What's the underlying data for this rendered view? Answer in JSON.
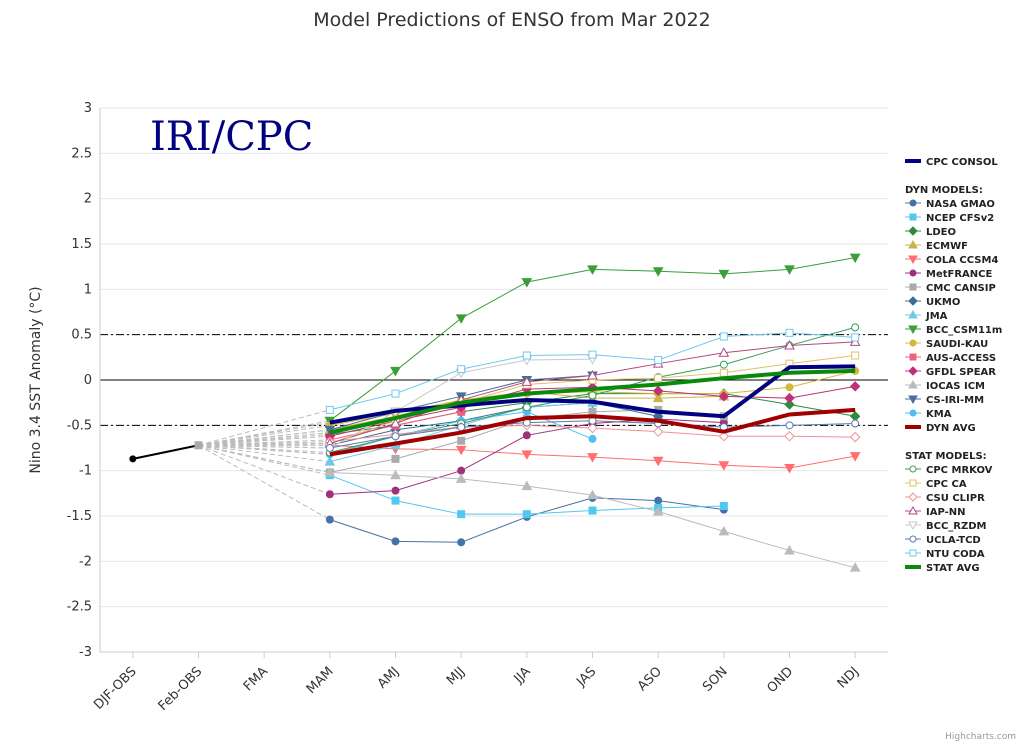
{
  "chart_data": {
    "type": "line",
    "title": "Model Predictions of ENSO from Mar 2022",
    "watermark": "IRI/CPC",
    "ylabel": "Nino 3.4 SST Anomaly (°C)",
    "ylim": [
      -3,
      3
    ],
    "yticks": [
      "3",
      "2.5",
      "2",
      "1.5",
      "1",
      "0.5",
      "0",
      "-0.5",
      "-1",
      "-1.5",
      "-2",
      "-2.5",
      "-3"
    ],
    "ytick_values": [
      3,
      2.5,
      2,
      1.5,
      1,
      0.5,
      0,
      -0.5,
      -1,
      -1.5,
      -2,
      -2.5,
      -3
    ],
    "categories": [
      "DJF-OBS",
      "Feb-OBS",
      "FMA",
      "MAM",
      "AMJ",
      "MJJ",
      "JJA",
      "JAS",
      "ASO",
      "SON",
      "OND",
      "NDJ"
    ],
    "reference_lines": [
      0.5,
      0,
      -0.5
    ],
    "grid": true,
    "legend_position": "right",
    "observed": {
      "x": [
        "DJF-OBS",
        "Feb-OBS"
      ],
      "values": [
        -0.87,
        -0.72
      ],
      "color": "#000000"
    },
    "dyn_header": "DYN MODELS:",
    "stat_header": "STAT MODELS:",
    "series": [
      {
        "name": "CPC CONSOL",
        "group": "consol",
        "color": "#000080",
        "marker": "none",
        "width": 4,
        "values": [
          null,
          null,
          null,
          -0.47,
          -0.34,
          -0.28,
          -0.22,
          -0.24,
          -0.35,
          -0.4,
          0.14,
          0.15
        ]
      },
      {
        "name": "NASA GMAO",
        "group": "dyn",
        "color": "#4572a7",
        "marker": "circle",
        "width": 1,
        "values": [
          null,
          null,
          null,
          -1.54,
          -1.78,
          -1.79,
          -1.51,
          -1.3,
          -1.33,
          -1.43,
          null,
          null
        ]
      },
      {
        "name": "NCEP CFSv2",
        "group": "dyn",
        "color": "#50c8f0",
        "marker": "square",
        "width": 1,
        "values": [
          null,
          null,
          null,
          -1.05,
          -1.33,
          -1.48,
          -1.48,
          -1.44,
          -1.41,
          -1.39,
          null,
          null
        ]
      },
      {
        "name": "LDEO",
        "group": "dyn",
        "color": "#2e8b3e",
        "marker": "diamond",
        "width": 1,
        "values": [
          null,
          null,
          null,
          -0.6,
          -0.5,
          -0.35,
          -0.25,
          -0.15,
          -0.15,
          -0.15,
          -0.27,
          -0.4
        ]
      },
      {
        "name": "ECMWF",
        "group": "dyn",
        "color": "#c9b44a",
        "marker": "triangle",
        "width": 1,
        "values": [
          null,
          null,
          null,
          -0.55,
          -0.4,
          -0.22,
          -0.13,
          -0.2,
          -0.2,
          -0.18,
          null,
          null
        ]
      },
      {
        "name": "COLA CCSM4",
        "group": "dyn",
        "color": "#ff6f6f",
        "marker": "triangle-down",
        "width": 1,
        "values": [
          null,
          null,
          null,
          -0.72,
          -0.76,
          -0.77,
          -0.82,
          -0.85,
          -0.89,
          -0.94,
          -0.97,
          -0.84
        ]
      },
      {
        "name": "MetFRANCE",
        "group": "dyn",
        "color": "#a0307a",
        "marker": "circle",
        "width": 1,
        "values": [
          null,
          null,
          null,
          -1.26,
          -1.22,
          -1.0,
          -0.61,
          -0.48,
          -0.43,
          -0.47,
          null,
          null
        ]
      },
      {
        "name": "CMC CANSIP",
        "group": "dyn",
        "color": "#aaaaaa",
        "marker": "square",
        "width": 1,
        "values": [
          null,
          null,
          null,
          -1.02,
          -0.87,
          -0.67,
          -0.43,
          -0.35,
          -0.33,
          -0.4,
          null,
          null
        ]
      },
      {
        "name": "UKMO",
        "group": "dyn",
        "color": "#3a6e96",
        "marker": "diamond",
        "width": 1,
        "values": [
          null,
          null,
          null,
          -0.72,
          -0.55,
          -0.45,
          -0.3,
          -0.25,
          -0.4,
          null,
          null,
          null
        ]
      },
      {
        "name": "JMA",
        "group": "dyn",
        "color": "#70c8e8",
        "marker": "triangle",
        "width": 1,
        "values": [
          null,
          null,
          null,
          -0.9,
          -0.72,
          -0.5,
          -0.3,
          -0.25,
          null,
          null,
          null,
          null
        ]
      },
      {
        "name": "BCC_CSM11m",
        "group": "dyn",
        "color": "#3a9e3a",
        "marker": "triangle-down",
        "width": 1,
        "values": [
          null,
          null,
          null,
          -0.45,
          0.1,
          0.68,
          1.08,
          1.22,
          1.2,
          1.17,
          1.22,
          1.35
        ]
      },
      {
        "name": "SAUDI-KAU",
        "group": "dyn",
        "color": "#d4b83c",
        "marker": "circle",
        "width": 1,
        "values": [
          null,
          null,
          null,
          -0.5,
          -0.37,
          -0.22,
          -0.15,
          -0.13,
          -0.15,
          -0.15,
          -0.08,
          0.1
        ]
      },
      {
        "name": "AUS-ACCESS",
        "group": "dyn",
        "color": "#f06080",
        "marker": "square",
        "width": 1,
        "values": [
          null,
          null,
          null,
          -0.66,
          -0.5,
          -0.35,
          null,
          null,
          null,
          null,
          null,
          null
        ]
      },
      {
        "name": "GFDL SPEAR",
        "group": "dyn",
        "color": "#c0307a",
        "marker": "diamond",
        "width": 1,
        "values": [
          null,
          null,
          null,
          -0.62,
          -0.45,
          -0.3,
          -0.1,
          -0.08,
          -0.12,
          -0.18,
          -0.2,
          -0.07
        ]
      },
      {
        "name": "IOCAS ICM",
        "group": "dyn",
        "color": "#bbbbbb",
        "marker": "triangle",
        "width": 1,
        "values": [
          null,
          null,
          null,
          -1.02,
          -1.05,
          -1.09,
          -1.17,
          -1.27,
          -1.45,
          -1.67,
          -1.88,
          -2.07
        ]
      },
      {
        "name": "CS-IRI-MM",
        "group": "dyn",
        "color": "#4a6e9a",
        "marker": "triangle-down",
        "width": 1,
        "values": [
          null,
          null,
          null,
          -0.55,
          -0.35,
          -0.18,
          0.0,
          0.05,
          null,
          null,
          null,
          null
        ]
      },
      {
        "name": "KMA",
        "group": "dyn",
        "color": "#50c0f0",
        "marker": "circle",
        "width": 1,
        "values": [
          null,
          null,
          null,
          -0.82,
          -0.62,
          -0.45,
          -0.35,
          -0.65,
          null,
          null,
          null,
          null
        ]
      },
      {
        "name": "DYN AVG",
        "group": "dyn",
        "color": "#a00000",
        "marker": "none",
        "width": 4,
        "values": [
          null,
          null,
          null,
          -0.82,
          -0.7,
          -0.58,
          -0.42,
          -0.4,
          -0.45,
          -0.57,
          -0.38,
          -0.33
        ]
      },
      {
        "name": "CPC MRKOV",
        "group": "stat",
        "color": "#3a9e5a",
        "marker": "circle-open",
        "width": 1,
        "values": [
          null,
          null,
          null,
          -0.8,
          -0.62,
          -0.48,
          -0.3,
          -0.17,
          0.03,
          0.17,
          0.38,
          0.58
        ]
      },
      {
        "name": "CPC CA",
        "group": "stat",
        "color": "#e0c068",
        "marker": "square-open",
        "width": 1,
        "values": [
          null,
          null,
          null,
          -0.7,
          -0.45,
          -0.25,
          -0.05,
          0.0,
          0.02,
          0.08,
          0.18,
          0.27
        ]
      },
      {
        "name": "CSU CLIPR",
        "group": "stat",
        "color": "#f09098",
        "marker": "diamond-open",
        "width": 1,
        "values": [
          null,
          null,
          null,
          -0.68,
          -0.6,
          -0.52,
          -0.5,
          -0.53,
          -0.57,
          -0.62,
          -0.62,
          -0.63
        ]
      },
      {
        "name": "IAP-NN",
        "group": "stat",
        "color": "#b04880",
        "marker": "triangle-open",
        "width": 1,
        "values": [
          null,
          null,
          null,
          -0.7,
          -0.48,
          -0.22,
          -0.02,
          0.05,
          0.18,
          0.3,
          0.38,
          0.42
        ]
      },
      {
        "name": "BCC_RZDM",
        "group": "stat",
        "color": "#c8c8c8",
        "marker": "triangle-down-open",
        "width": 1,
        "values": [
          null,
          null,
          null,
          -0.75,
          -0.35,
          0.08,
          0.22,
          0.23,
          null,
          null,
          null,
          null
        ]
      },
      {
        "name": "UCLA-TCD",
        "group": "stat",
        "color": "#5a78b0",
        "marker": "circle-open",
        "width": 1,
        "values": [
          null,
          null,
          null,
          -0.75,
          -0.62,
          -0.52,
          -0.47,
          -0.45,
          -0.48,
          -0.52,
          -0.5,
          -0.48
        ]
      },
      {
        "name": "NTU CODA",
        "group": "stat",
        "color": "#70c8f0",
        "marker": "square-open",
        "width": 1,
        "values": [
          null,
          null,
          null,
          -0.33,
          -0.15,
          0.12,
          0.27,
          0.28,
          0.22,
          0.48,
          0.52,
          0.47
        ]
      },
      {
        "name": "STAT AVG",
        "group": "stat",
        "color": "#0a8a0a",
        "marker": "none",
        "width": 4,
        "values": [
          null,
          null,
          null,
          -0.58,
          -0.42,
          -0.25,
          -0.15,
          -0.1,
          -0.05,
          0.02,
          0.08,
          0.1
        ]
      }
    ],
    "credit": "Highcharts.com"
  }
}
